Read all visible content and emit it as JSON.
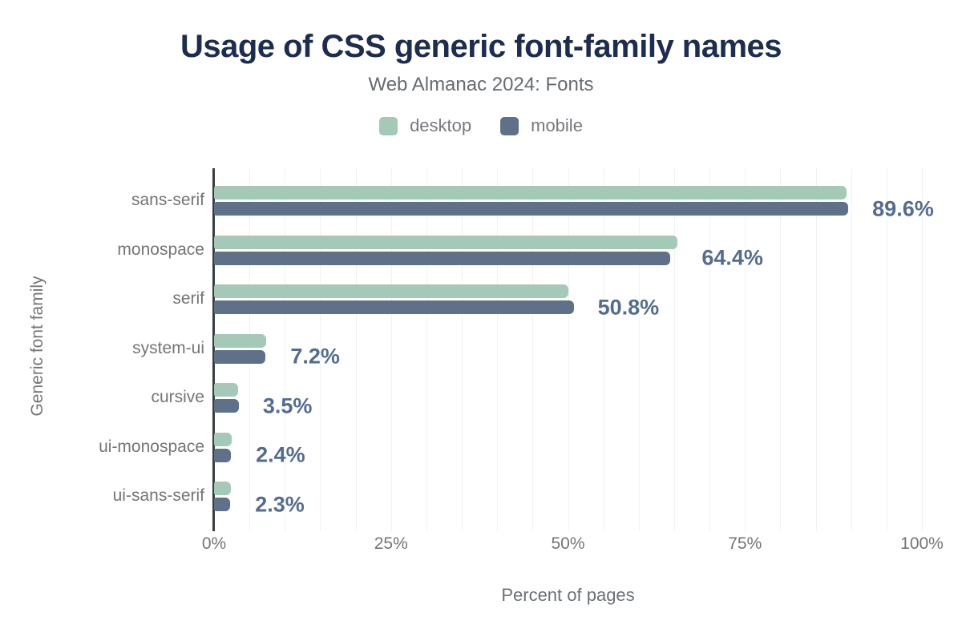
{
  "header": {
    "title": "Usage of CSS generic font-family names",
    "subtitle": "Web Almanac 2024: Fonts"
  },
  "legend": [
    {
      "label": "desktop",
      "color": "#a4cab7"
    },
    {
      "label": "mobile",
      "color": "#5f7189"
    }
  ],
  "axes": {
    "xlabel": "Percent of pages",
    "ylabel": "Generic font family"
  },
  "colors": {
    "desktop_bar": "#a4cab7",
    "mobile_bar": "#5f7189",
    "value_label": "#546c8e",
    "title_navy": "#1d2d50",
    "axis_line": "#383d45",
    "gridline": "#f0f2f3"
  },
  "chart_data": {
    "type": "bar",
    "orientation": "horizontal",
    "title": "Usage of CSS generic font-family names",
    "subtitle": "Web Almanac 2024: Fonts",
    "xlabel": "Percent of pages",
    "ylabel": "Generic font family",
    "xlim": [
      0,
      100
    ],
    "xtick_values": [
      0,
      25,
      50,
      75,
      100
    ],
    "xtick_labels": [
      "0%",
      "25%",
      "50%",
      "75%",
      "100%"
    ],
    "gridline_step_percent": 5,
    "legend_position": "top",
    "categories": [
      "sans-serif",
      "monospace",
      "serif",
      "system-ui",
      "cursive",
      "ui-monospace",
      "ui-sans-serif"
    ],
    "series": [
      {
        "name": "desktop",
        "color": "#a4cab7",
        "values": [
          89.4,
          65.5,
          50.0,
          7.4,
          3.4,
          2.5,
          2.4
        ]
      },
      {
        "name": "mobile",
        "color": "#5f7189",
        "values": [
          89.6,
          64.4,
          50.8,
          7.2,
          3.5,
          2.4,
          2.3
        ]
      }
    ],
    "value_labels": [
      "89.6%",
      "64.4%",
      "50.8%",
      "7.2%",
      "3.5%",
      "2.4%",
      "2.3%"
    ]
  }
}
